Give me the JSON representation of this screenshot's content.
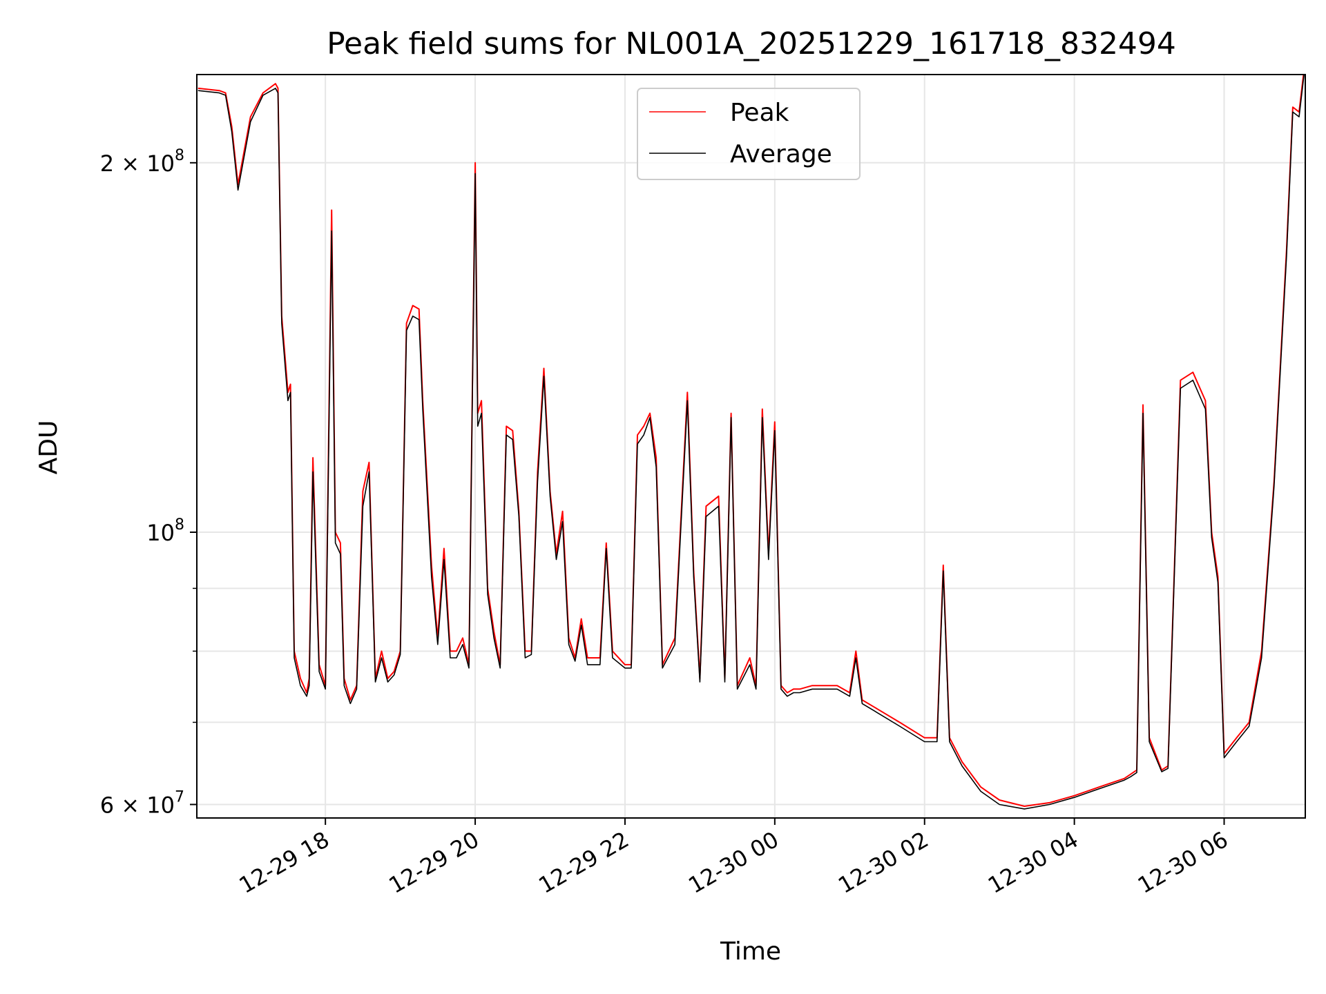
{
  "chart_data": {
    "type": "line",
    "title": "Peak field sums for NL001A_20251229_161718_832494",
    "xlabel": "Time",
    "ylabel": "ADU",
    "yscale": "log",
    "ylim": [
      58500000,
      236000000
    ],
    "xlim": [
      "2025-12-29 16:17",
      "2025-12-30 07:05"
    ],
    "grid": true,
    "legend_position": "top-center",
    "x_ticks": [
      {
        "value": "2025-12-29 18:00",
        "label": "12-29 18"
      },
      {
        "value": "2025-12-29 20:00",
        "label": "12-29 20"
      },
      {
        "value": "2025-12-29 22:00",
        "label": "12-29 22"
      },
      {
        "value": "2025-12-30 00:00",
        "label": "12-30 00"
      },
      {
        "value": "2025-12-30 02:00",
        "label": "12-30 02"
      },
      {
        "value": "2025-12-30 04:00",
        "label": "12-30 04"
      },
      {
        "value": "2025-12-30 06:00",
        "label": "12-30 06"
      }
    ],
    "y_ticks_major": [
      {
        "value": 60000000,
        "base": "6",
        "exp": "7"
      },
      {
        "value": 100000000,
        "base": "",
        "exp": "8"
      },
      {
        "value": 200000000,
        "base": "2",
        "exp": "8"
      }
    ],
    "y_ticks_minor": [
      70000000,
      80000000,
      90000000
    ],
    "series": [
      {
        "name": "Peak",
        "color": "#ff0000",
        "x": [
          "2025-12-29 16:18",
          "2025-12-29 16:35",
          "2025-12-29 16:40",
          "2025-12-29 16:45",
          "2025-12-29 16:50",
          "2025-12-29 17:00",
          "2025-12-29 17:10",
          "2025-12-29 17:20",
          "2025-12-29 17:22",
          "2025-12-29 17:25",
          "2025-12-29 17:30",
          "2025-12-29 17:32",
          "2025-12-29 17:35",
          "2025-12-29 17:40",
          "2025-12-29 17:45",
          "2025-12-29 17:47",
          "2025-12-29 17:50",
          "2025-12-29 17:55",
          "2025-12-29 18:00",
          "2025-12-29 18:05",
          "2025-12-29 18:08",
          "2025-12-29 18:12",
          "2025-12-29 18:15",
          "2025-12-29 18:20",
          "2025-12-29 18:25",
          "2025-12-29 18:30",
          "2025-12-29 18:35",
          "2025-12-29 18:40",
          "2025-12-29 18:45",
          "2025-12-29 18:50",
          "2025-12-29 18:55",
          "2025-12-29 19:00",
          "2025-12-29 19:05",
          "2025-12-29 19:10",
          "2025-12-29 19:15",
          "2025-12-29 19:18",
          "2025-12-29 19:25",
          "2025-12-29 19:30",
          "2025-12-29 19:35",
          "2025-12-29 19:40",
          "2025-12-29 19:45",
          "2025-12-29 19:50",
          "2025-12-29 19:55",
          "2025-12-29 20:00",
          "2025-12-29 20:02",
          "2025-12-29 20:05",
          "2025-12-29 20:10",
          "2025-12-29 20:15",
          "2025-12-29 20:20",
          "2025-12-29 20:25",
          "2025-12-29 20:30",
          "2025-12-29 20:35",
          "2025-12-29 20:40",
          "2025-12-29 20:45",
          "2025-12-29 20:50",
          "2025-12-29 20:55",
          "2025-12-29 21:00",
          "2025-12-29 21:05",
          "2025-12-29 21:10",
          "2025-12-29 21:15",
          "2025-12-29 21:20",
          "2025-12-29 21:25",
          "2025-12-29 21:30",
          "2025-12-29 21:40",
          "2025-12-29 21:45",
          "2025-12-29 21:50",
          "2025-12-29 22:00",
          "2025-12-29 22:05",
          "2025-12-29 22:10",
          "2025-12-29 22:15",
          "2025-12-29 22:20",
          "2025-12-29 22:25",
          "2025-12-29 22:30",
          "2025-12-29 22:40",
          "2025-12-29 22:50",
          "2025-12-29 22:55",
          "2025-12-29 23:00",
          "2025-12-29 23:05",
          "2025-12-29 23:15",
          "2025-12-29 23:20",
          "2025-12-29 23:25",
          "2025-12-29 23:30",
          "2025-12-29 23:40",
          "2025-12-29 23:45",
          "2025-12-29 23:50",
          "2025-12-29 23:55",
          "2025-12-30 00:00",
          "2025-12-30 00:05",
          "2025-12-30 00:10",
          "2025-12-30 00:15",
          "2025-12-30 00:20",
          "2025-12-30 00:30",
          "2025-12-30 00:50",
          "2025-12-30 01:00",
          "2025-12-30 01:05",
          "2025-12-30 01:10",
          "2025-12-30 01:20",
          "2025-12-30 01:40",
          "2025-12-30 02:00",
          "2025-12-30 02:10",
          "2025-12-30 02:15",
          "2025-12-30 02:20",
          "2025-12-30 02:30",
          "2025-12-30 02:45",
          "2025-12-30 03:00",
          "2025-12-30 03:20",
          "2025-12-30 03:40",
          "2025-12-30 04:00",
          "2025-12-30 04:20",
          "2025-12-30 04:40",
          "2025-12-30 04:45",
          "2025-12-30 04:50",
          "2025-12-30 04:55",
          "2025-12-30 05:00",
          "2025-12-30 05:10",
          "2025-12-30 05:15",
          "2025-12-30 05:25",
          "2025-12-30 05:35",
          "2025-12-30 05:45",
          "2025-12-30 05:50",
          "2025-12-30 05:55",
          "2025-12-30 06:00",
          "2025-12-30 06:10",
          "2025-12-30 06:20",
          "2025-12-30 06:30",
          "2025-12-30 06:40",
          "2025-12-30 06:50",
          "2025-12-30 06:55",
          "2025-12-30 07:00",
          "2025-12-30 07:04"
        ],
        "values": [
          230000000,
          229000000,
          228000000,
          214000000,
          192000000,
          218000000,
          228000000,
          232000000,
          230000000,
          150000000,
          130000000,
          132000000,
          80000000,
          76000000,
          74000000,
          76000000,
          115000000,
          78000000,
          75000000,
          183000000,
          100000000,
          98000000,
          76000000,
          73000000,
          75000000,
          108000000,
          114000000,
          76000000,
          80000000,
          76000000,
          77000000,
          80000000,
          148000000,
          153000000,
          152000000,
          128000000,
          94000000,
          82000000,
          97000000,
          80000000,
          80000000,
          82000000,
          78000000,
          200000000,
          125000000,
          128000000,
          90000000,
          83000000,
          78000000,
          122000000,
          121000000,
          104000000,
          80000000,
          80000000,
          112000000,
          136000000,
          108000000,
          96000000,
          104000000,
          82000000,
          79000000,
          85000000,
          79000000,
          79000000,
          98000000,
          80000000,
          78000000,
          78000000,
          120000000,
          122000000,
          125000000,
          115000000,
          78000000,
          82000000,
          130000000,
          93000000,
          76000000,
          105000000,
          107000000,
          76000000,
          125000000,
          75000000,
          79000000,
          75000000,
          126000000,
          96000000,
          123000000,
          75000000,
          74000000,
          74500000,
          74500000,
          75000000,
          75000000,
          74000000,
          80000000,
          73000000,
          72000000,
          70000000,
          68000000,
          68000000,
          94000000,
          68000000,
          65000000,
          62000000,
          60500000,
          59800000,
          60200000,
          61000000,
          62000000,
          63000000,
          63500000,
          64000000,
          127000000,
          68000000,
          64000000,
          64500000,
          133000000,
          135000000,
          128000000,
          100000000,
          92000000,
          66000000,
          68000000,
          70000000,
          80000000,
          110000000,
          170000000,
          222000000,
          220000000,
          238000000
        ]
      },
      {
        "name": "Average",
        "color": "#000000",
        "x": [
          "2025-12-29 16:18",
          "2025-12-29 16:35",
          "2025-12-29 16:40",
          "2025-12-29 16:45",
          "2025-12-29 16:50",
          "2025-12-29 17:00",
          "2025-12-29 17:10",
          "2025-12-29 17:20",
          "2025-12-29 17:22",
          "2025-12-29 17:25",
          "2025-12-29 17:30",
          "2025-12-29 17:32",
          "2025-12-29 17:35",
          "2025-12-29 17:40",
          "2025-12-29 17:45",
          "2025-12-29 17:47",
          "2025-12-29 17:50",
          "2025-12-29 17:55",
          "2025-12-29 18:00",
          "2025-12-29 18:05",
          "2025-12-29 18:08",
          "2025-12-29 18:12",
          "2025-12-29 18:15",
          "2025-12-29 18:20",
          "2025-12-29 18:25",
          "2025-12-29 18:30",
          "2025-12-29 18:35",
          "2025-12-29 18:40",
          "2025-12-29 18:45",
          "2025-12-29 18:50",
          "2025-12-29 18:55",
          "2025-12-29 19:00",
          "2025-12-29 19:05",
          "2025-12-29 19:10",
          "2025-12-29 19:15",
          "2025-12-29 19:18",
          "2025-12-29 19:25",
          "2025-12-29 19:30",
          "2025-12-29 19:35",
          "2025-12-29 19:40",
          "2025-12-29 19:45",
          "2025-12-29 19:50",
          "2025-12-29 19:55",
          "2025-12-29 20:00",
          "2025-12-29 20:02",
          "2025-12-29 20:05",
          "2025-12-29 20:10",
          "2025-12-29 20:15",
          "2025-12-29 20:20",
          "2025-12-29 20:25",
          "2025-12-29 20:30",
          "2025-12-29 20:35",
          "2025-12-29 20:40",
          "2025-12-29 20:45",
          "2025-12-29 20:50",
          "2025-12-29 20:55",
          "2025-12-29 21:00",
          "2025-12-29 21:05",
          "2025-12-29 21:10",
          "2025-12-29 21:15",
          "2025-12-29 21:20",
          "2025-12-29 21:25",
          "2025-12-29 21:30",
          "2025-12-29 21:40",
          "2025-12-29 21:45",
          "2025-12-29 21:50",
          "2025-12-29 22:00",
          "2025-12-29 22:05",
          "2025-12-29 22:10",
          "2025-12-29 22:15",
          "2025-12-29 22:20",
          "2025-12-29 22:25",
          "2025-12-29 22:30",
          "2025-12-29 22:40",
          "2025-12-29 22:50",
          "2025-12-29 22:55",
          "2025-12-29 23:00",
          "2025-12-29 23:05",
          "2025-12-29 23:15",
          "2025-12-29 23:20",
          "2025-12-29 23:25",
          "2025-12-29 23:30",
          "2025-12-29 23:40",
          "2025-12-29 23:45",
          "2025-12-29 23:50",
          "2025-12-29 23:55",
          "2025-12-30 00:00",
          "2025-12-30 00:05",
          "2025-12-30 00:10",
          "2025-12-30 00:15",
          "2025-12-30 00:20",
          "2025-12-30 00:30",
          "2025-12-30 00:50",
          "2025-12-30 01:00",
          "2025-12-30 01:05",
          "2025-12-30 01:10",
          "2025-12-30 01:20",
          "2025-12-30 01:40",
          "2025-12-30 02:00",
          "2025-12-30 02:10",
          "2025-12-30 02:15",
          "2025-12-30 02:20",
          "2025-12-30 02:30",
          "2025-12-30 02:45",
          "2025-12-30 03:00",
          "2025-12-30 03:20",
          "2025-12-30 03:40",
          "2025-12-30 04:00",
          "2025-12-30 04:20",
          "2025-12-30 04:40",
          "2025-12-30 04:45",
          "2025-12-30 04:50",
          "2025-12-30 04:55",
          "2025-12-30 05:00",
          "2025-12-30 05:10",
          "2025-12-30 05:15",
          "2025-12-30 05:25",
          "2025-12-30 05:35",
          "2025-12-30 05:45",
          "2025-12-30 05:50",
          "2025-12-30 05:55",
          "2025-12-30 06:00",
          "2025-12-30 06:10",
          "2025-12-30 06:20",
          "2025-12-30 06:30",
          "2025-12-30 06:40",
          "2025-12-30 06:50",
          "2025-12-30 06:55",
          "2025-12-30 07:00",
          "2025-12-30 07:04"
        ],
        "values": [
          229000000,
          228000000,
          227000000,
          212000000,
          190000000,
          216000000,
          227000000,
          230000000,
          228000000,
          148000000,
          128000000,
          130000000,
          79000000,
          75000000,
          73500000,
          75000000,
          112000000,
          77000000,
          74500000,
          176000000,
          98000000,
          96000000,
          75000000,
          72500000,
          74500000,
          105000000,
          112000000,
          75500000,
          79000000,
          75500000,
          76500000,
          79500000,
          146000000,
          150000000,
          149000000,
          126000000,
          92000000,
          81000000,
          95000000,
          79000000,
          79000000,
          81000000,
          77500000,
          196000000,
          122000000,
          125000000,
          89000000,
          82000000,
          77500000,
          120000000,
          119000000,
          103000000,
          79000000,
          79500000,
          110000000,
          134000000,
          107000000,
          95000000,
          102000000,
          81000000,
          78500000,
          84000000,
          78000000,
          78000000,
          97000000,
          79000000,
          77500000,
          77500000,
          118000000,
          120000000,
          124000000,
          113000000,
          77500000,
          81000000,
          128000000,
          92000000,
          75500000,
          103000000,
          105000000,
          75500000,
          124000000,
          74500000,
          78000000,
          74500000,
          124000000,
          95000000,
          121000000,
          74500000,
          73500000,
          74000000,
          74000000,
          74500000,
          74500000,
          73500000,
          79000000,
          72500000,
          71500000,
          69500000,
          67500000,
          67500000,
          93000000,
          67500000,
          64500000,
          61500000,
          60000000,
          59500000,
          60000000,
          60800000,
          61800000,
          62800000,
          63200000,
          63700000,
          125000000,
          67500000,
          63800000,
          64200000,
          131000000,
          133000000,
          126000000,
          99000000,
          91000000,
          65500000,
          67500000,
          69500000,
          79000000,
          109000000,
          168000000,
          220000000,
          218000000,
          236000000
        ]
      }
    ]
  }
}
